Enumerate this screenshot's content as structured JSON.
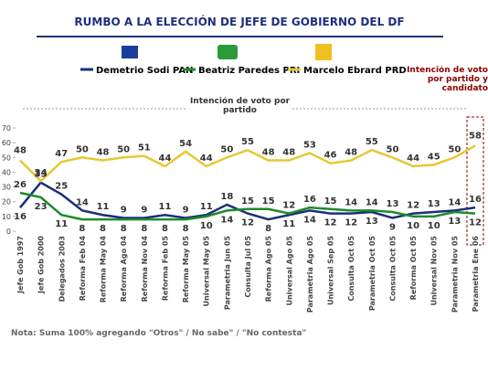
{
  "chart_data": {
    "type": "line",
    "title": "RUMBO A LA ELECCIÓN DE JEFE DE GOBIERNO DEL DF",
    "annotation": "Intención de voto por partido y candidato",
    "subtitle": "Intención de voto por partido",
    "note": "Nota: Suma 100% agregando \"Otros\" / No sabe\" / \"No contesta\"",
    "categories": [
      "Jefe Gob 1997",
      "Jefe Gob 2000",
      "Delegados 2003",
      "Reforma Feb 04",
      "Reforma May 04",
      "Reforma Ago 04",
      "Reforma Nov 04",
      "Reforma Feb 05",
      "Reforma May 05",
      "Universal May 05",
      "Parametria Jun 05",
      "Consulta Jul 05",
      "Reforma Ago 05",
      "Universal Ago 05",
      "Parametria Ago 05",
      "Universal Sep 05",
      "Consulta Oct 05",
      "Parametria Oct 05",
      "Consulta Oct 05",
      "Reforma Oct 05",
      "Universal Nov 05",
      "Parametria Nov 05",
      "Parametria Ene 06"
    ],
    "series": [
      {
        "name": "Demetrio Sodi  PAN",
        "color": "#1a2f7a",
        "values": [
          16,
          33,
          25,
          14,
          11,
          9,
          9,
          11,
          9,
          11,
          18,
          12,
          8,
          11,
          14,
          12,
          12,
          13,
          9,
          12,
          13,
          14,
          16
        ]
      },
      {
        "name": "Beatriz Paredes  PRI",
        "color": "#1f8a2a",
        "values": [
          26,
          23,
          11,
          8,
          8,
          8,
          8,
          8,
          8,
          10,
          14,
          15,
          15,
          12,
          16,
          15,
          14,
          14,
          13,
          10,
          10,
          13,
          12
        ]
      },
      {
        "name": "Marcelo Ebrard  PRD",
        "color": "#e6c832",
        "values": [
          48,
          34,
          47,
          50,
          48,
          50,
          51,
          44,
          54,
          44,
          50,
          55,
          48,
          48,
          53,
          46,
          48,
          55,
          50,
          44,
          45,
          50,
          58
        ]
      }
    ],
    "ylim": [
      0,
      70
    ],
    "yticks": [
      0,
      10,
      20,
      30,
      40,
      50,
      60,
      70
    ]
  }
}
